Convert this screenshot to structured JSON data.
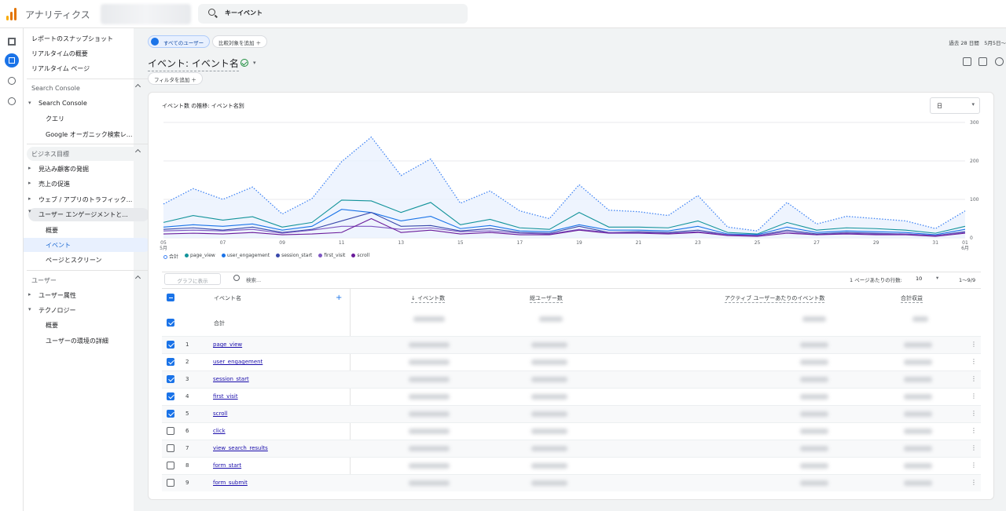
{
  "app": {
    "title": "アナリティクス",
    "search_text": "キーイベント"
  },
  "sidebar": {
    "top_links": [
      "レポートのスナップショット",
      "リアルタイムの概要",
      "リアルタイム ページ"
    ],
    "sections": [
      {
        "title": "Search Console",
        "parent": "Search Console",
        "children": [
          "クエリ",
          "Google オーガニック検索レ..."
        ]
      },
      {
        "title": "ビジネス目標",
        "parents": [
          "見込み顧客の発掘",
          "売上の促進",
          "ウェブ / アプリのトラフィック...",
          "ユーザー エンゲージメントと..."
        ],
        "children": [
          "概要",
          "イベント",
          "ページとスクリーン"
        ]
      },
      {
        "title": "ユーザー",
        "parents": [
          "ユーザー属性",
          "テクノロジー"
        ],
        "children": [
          "概要",
          "ユーザーの環境の詳細"
        ]
      }
    ]
  },
  "toolbar": {
    "segment_chip": "すべてのユーザー",
    "compare_chip": "比較対象を追加 ＋",
    "date_range": "過去 28 日間　5月5日〜",
    "page_title": "イベント: イベント名",
    "filter_chip": "フィルタを追加 ＋"
  },
  "chart": {
    "title": "イベント数 の推移: イベント名別",
    "granularity": "日"
  },
  "chart_data": {
    "type": "line",
    "x": [
      "05\n5月",
      "06",
      "07",
      "08",
      "09",
      "10",
      "11",
      "12",
      "13",
      "14",
      "15",
      "16",
      "17",
      "18",
      "19",
      "20",
      "21",
      "22",
      "23",
      "24",
      "25",
      "26",
      "27",
      "28",
      "29",
      "30",
      "31",
      "01\n6月"
    ],
    "x_tick_labels": [
      "05",
      "07",
      "09",
      "11",
      "13",
      "15",
      "17",
      "19",
      "21",
      "23",
      "25",
      "27",
      "29",
      "31",
      "01"
    ],
    "x_tick_sublabels": {
      "05": "5月",
      "01": "6月"
    },
    "ylim": [
      0,
      300
    ],
    "y_ticks": [
      0,
      100,
      200,
      300
    ],
    "series": [
      {
        "name": "合計",
        "color": "#4285f4",
        "style": "dotted-area",
        "values": [
          88,
          128,
          100,
          132,
          62,
          102,
          198,
          262,
          162,
          205,
          90,
          122,
          70,
          50,
          138,
          72,
          68,
          58,
          110,
          28,
          18,
          92,
          36,
          56,
          50,
          44,
          24,
          70
        ]
      },
      {
        "name": "page_view",
        "color": "#12939a",
        "values": [
          40,
          58,
          46,
          55,
          28,
          40,
          98,
          96,
          66,
          92,
          34,
          48,
          26,
          22,
          66,
          28,
          28,
          26,
          44,
          14,
          10,
          40,
          20,
          26,
          24,
          20,
          12,
          30
        ]
      },
      {
        "name": "user_engagement",
        "color": "#1a73e8",
        "values": [
          28,
          34,
          30,
          36,
          20,
          30,
          74,
          66,
          44,
          56,
          24,
          32,
          18,
          16,
          34,
          20,
          20,
          18,
          30,
          10,
          8,
          28,
          14,
          18,
          16,
          14,
          8,
          22
        ]
      },
      {
        "name": "session_start",
        "color": "#3949ab",
        "values": [
          22,
          26,
          20,
          28,
          14,
          22,
          44,
          66,
          30,
          32,
          18,
          24,
          14,
          12,
          30,
          14,
          16,
          14,
          20,
          8,
          6,
          20,
          10,
          14,
          12,
          10,
          6,
          16
        ]
      },
      {
        "name": "first_visit",
        "color": "#7e57c2",
        "values": [
          18,
          20,
          18,
          22,
          12,
          20,
          30,
          30,
          22,
          26,
          16,
          18,
          12,
          10,
          22,
          14,
          14,
          12,
          16,
          8,
          6,
          16,
          8,
          12,
          10,
          10,
          6,
          14
        ]
      },
      {
        "name": "scroll",
        "color": "#6a1b9a",
        "values": [
          10,
          12,
          10,
          14,
          8,
          10,
          14,
          50,
          14,
          20,
          10,
          14,
          8,
          8,
          20,
          12,
          12,
          10,
          14,
          6,
          4,
          12,
          8,
          10,
          8,
          8,
          4,
          12
        ]
      }
    ]
  },
  "table": {
    "graph_button": "グラフに表示",
    "search_placeholder": "検索...",
    "rows_per_page_label": "1 ページあたりの行数:",
    "rows_per_page": "10",
    "pager": "1〜9/9",
    "columns": [
      "イベント名",
      "↓ イベント数",
      "総ユーザー数",
      "アクティブ ユーザーあたりのイベント数",
      "合計収益"
    ],
    "total_label": "合計",
    "rows": [
      {
        "rank": "1",
        "name": "page_view",
        "checked": true
      },
      {
        "rank": "2",
        "name": "user_engagement",
        "checked": true
      },
      {
        "rank": "3",
        "name": "session_start",
        "checked": true
      },
      {
        "rank": "4",
        "name": "first_visit",
        "checked": true
      },
      {
        "rank": "5",
        "name": "scroll",
        "checked": true
      },
      {
        "rank": "6",
        "name": "click",
        "checked": false
      },
      {
        "rank": "7",
        "name": "view_search_results",
        "checked": false
      },
      {
        "rank": "8",
        "name": "form_start",
        "checked": false
      },
      {
        "rank": "9",
        "name": "form_submit",
        "checked": false
      }
    ]
  }
}
